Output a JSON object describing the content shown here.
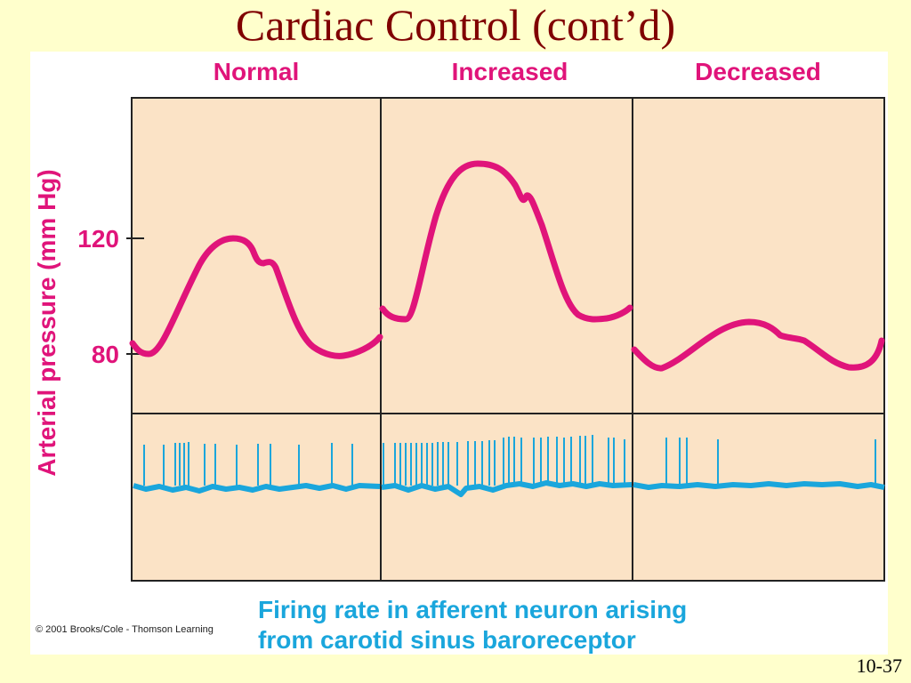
{
  "slide": {
    "title": "Cardiac Control (cont’d)",
    "page_number": "10-37"
  },
  "figure": {
    "panel_headers": [
      "Normal",
      "Increased",
      "Decreased"
    ],
    "y_axis_label": "Arterial pressure (mm Hg)",
    "y_ticks": [
      "120",
      "80"
    ],
    "x_caption_line1": "Firing rate in afferent neuron arising",
    "x_caption_line2": "from carotid sinus baroreceptor",
    "copyright": "© 2001 Brooks/Cole - Thomson Learning",
    "colors": {
      "panel_fill": "#FBE3C6",
      "pressure_wave": "#E0147A",
      "nerve_trace": "#1AA6DC",
      "header_text": "#E0147A",
      "caption_text": "#1AA6DC",
      "title_text": "#800000",
      "slide_bg": "#FFFFCC"
    }
  }
}
